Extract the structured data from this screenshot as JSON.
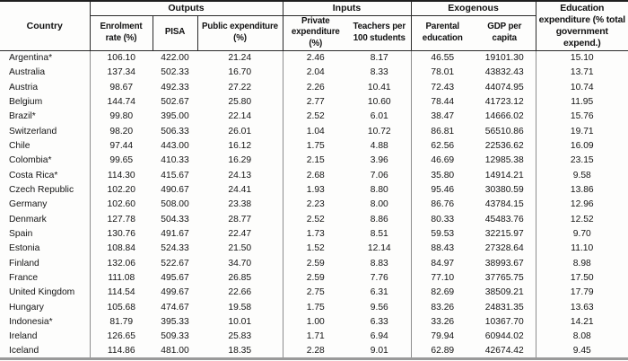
{
  "table": {
    "country_header": "Country",
    "groups": [
      {
        "label": "Outputs"
      },
      {
        "label": "Inputs"
      },
      {
        "label": "Exogenous"
      }
    ],
    "education_header": "Education expenditure (% total government expend.)",
    "subheaders": [
      "Enrolment rate (%)",
      "PISA",
      "Public expenditure (%)",
      "Private expenditure (%)",
      "Teachers per 100 students",
      "Parental education",
      "GDP per capita"
    ],
    "rows": [
      {
        "country": "Argentina*",
        "values": [
          "106.10",
          "422.00",
          "21.24",
          "2.46",
          "8.17",
          "46.55",
          "19101.30",
          "15.10"
        ]
      },
      {
        "country": "Australia",
        "values": [
          "137.34",
          "502.33",
          "16.70",
          "2.04",
          "8.33",
          "78.01",
          "43832.43",
          "13.71"
        ]
      },
      {
        "country": "Austria",
        "values": [
          "98.67",
          "492.33",
          "27.22",
          "2.26",
          "10.41",
          "72.43",
          "44074.95",
          "10.74"
        ]
      },
      {
        "country": "Belgium",
        "values": [
          "144.74",
          "502.67",
          "25.80",
          "2.77",
          "10.60",
          "78.44",
          "41723.12",
          "11.95"
        ]
      },
      {
        "country": "Brazil*",
        "values": [
          "99.80",
          "395.00",
          "22.14",
          "2.52",
          "6.01",
          "38.47",
          "14666.02",
          "15.76"
        ]
      },
      {
        "country": "Switzerland",
        "values": [
          "98.20",
          "506.33",
          "26.01",
          "1.04",
          "10.72",
          "86.81",
          "56510.86",
          "19.71"
        ]
      },
      {
        "country": "Chile",
        "values": [
          "97.44",
          "443.00",
          "16.12",
          "1.75",
          "4.88",
          "62.56",
          "22536.62",
          "16.09"
        ]
      },
      {
        "country": "Colombia*",
        "values": [
          "99.65",
          "410.33",
          "16.29",
          "2.15",
          "3.96",
          "46.69",
          "12985.38",
          "23.15"
        ]
      },
      {
        "country": "Costa Rica*",
        "values": [
          "114.30",
          "415.67",
          "24.13",
          "2.68",
          "7.06",
          "35.80",
          "14914.21",
          "9.58"
        ]
      },
      {
        "country": "Czech Republic",
        "values": [
          "102.20",
          "490.67",
          "24.41",
          "1.93",
          "8.80",
          "95.46",
          "30380.59",
          "13.86"
        ]
      },
      {
        "country": "Germany",
        "values": [
          "102.60",
          "508.00",
          "23.38",
          "2.23",
          "8.00",
          "86.76",
          "43784.15",
          "12.96"
        ]
      },
      {
        "country": "Denmark",
        "values": [
          "127.78",
          "504.33",
          "28.77",
          "2.52",
          "8.86",
          "80.33",
          "45483.76",
          "12.52"
        ]
      },
      {
        "country": "Spain",
        "values": [
          "130.76",
          "491.67",
          "22.47",
          "1.73",
          "8.51",
          "59.53",
          "32215.97",
          "9.70"
        ]
      },
      {
        "country": "Estonia",
        "values": [
          "108.84",
          "524.33",
          "21.50",
          "1.52",
          "12.14",
          "88.43",
          "27328.64",
          "11.10"
        ]
      },
      {
        "country": "Finland",
        "values": [
          "132.06",
          "522.67",
          "34.70",
          "2.59",
          "8.83",
          "84.97",
          "38993.67",
          "8.98"
        ]
      },
      {
        "country": "France",
        "values": [
          "111.08",
          "495.67",
          "26.85",
          "2.59",
          "7.76",
          "77.10",
          "37765.75",
          "17.50"
        ]
      },
      {
        "country": "United Kingdom",
        "values": [
          "114.54",
          "499.67",
          "22.66",
          "2.75",
          "6.31",
          "82.69",
          "38509.21",
          "17.79"
        ]
      },
      {
        "country": "Hungary",
        "values": [
          "105.68",
          "474.67",
          "19.58",
          "1.75",
          "9.56",
          "83.26",
          "24831.35",
          "13.63"
        ]
      },
      {
        "country": "Indonesia*",
        "values": [
          "81.79",
          "395.33",
          "10.01",
          "1.00",
          "6.33",
          "33.26",
          "10367.70",
          "14.21"
        ]
      },
      {
        "country": "Ireland",
        "values": [
          "126.65",
          "509.33",
          "25.83",
          "1.71",
          "6.94",
          "79.94",
          "60944.02",
          "8.08"
        ]
      },
      {
        "country": "Iceland",
        "values": [
          "114.86",
          "481.00",
          "18.35",
          "2.28",
          "9.01",
          "62.89",
          "42674.42",
          "9.45"
        ]
      }
    ]
  }
}
